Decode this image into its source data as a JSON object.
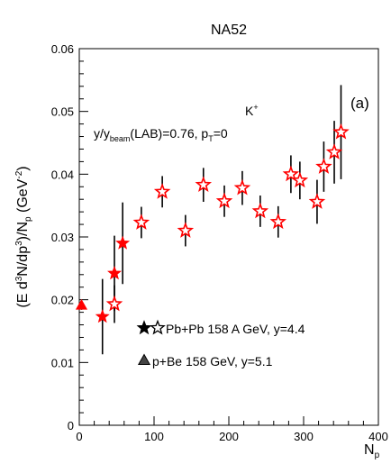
{
  "chart_data": {
    "type": "scatter",
    "title": "NA52",
    "xlabel": "N",
    "xlabel_sub": "p",
    "ylabel": {
      "lead": "(E d",
      "sup1": "3",
      "mid": "N/dp",
      "sup2": "3",
      "close": ")/N",
      "sub": "p",
      "unit_open": " (GeV",
      "sup3": "-2",
      "unit_close": ")"
    },
    "xlim": [
      0,
      400
    ],
    "ylim": [
      0,
      0.06
    ],
    "xticks": [
      0,
      100,
      200,
      300,
      400
    ],
    "yticks": [
      0,
      0.01,
      0.02,
      0.03,
      0.04,
      0.05,
      0.06
    ],
    "ytick_labels": [
      "0",
      "0.01",
      "0.02",
      "0.03",
      "0.04",
      "0.05",
      "0.06"
    ],
    "grid": false,
    "annotations": {
      "particle": "K",
      "particle_sup": "+",
      "panel": "(a)",
      "kin_a": "y/y",
      "kin_sub": "beam",
      "kin_b": "(LAB)=0.76, p",
      "kin_sub2": "T",
      "kin_c": "=0"
    },
    "legend": {
      "placement": "bottom-center",
      "entries": [
        {
          "marker": "stars-filled-open",
          "label": "Pb+Pb 158 A GeV, y=4.4"
        },
        {
          "marker": "triangle-filled",
          "label": "p+Be 158 GeV, y=5.1"
        }
      ]
    },
    "series": [
      {
        "marker": "filled-star",
        "color": "#ff0000",
        "points": [
          {
            "x": 31,
            "y": 0.0173,
            "err": 0.006
          },
          {
            "x": 47,
            "y": 0.0242,
            "err": 0.006
          },
          {
            "x": 58,
            "y": 0.029,
            "err": 0.0065
          }
        ]
      },
      {
        "marker": "open-star",
        "color": "#ff0000",
        "points": [
          {
            "x": 47,
            "y": 0.0193,
            "err": 0.003
          },
          {
            "x": 83,
            "y": 0.0323,
            "err": 0.0025
          },
          {
            "x": 111,
            "y": 0.0372,
            "err": 0.0025
          },
          {
            "x": 142,
            "y": 0.031,
            "err": 0.0025
          },
          {
            "x": 166,
            "y": 0.0383,
            "err": 0.0027
          },
          {
            "x": 194,
            "y": 0.0357,
            "err": 0.0025
          },
          {
            "x": 218,
            "y": 0.0378,
            "err": 0.0027
          },
          {
            "x": 242,
            "y": 0.0341,
            "err": 0.0025
          },
          {
            "x": 266,
            "y": 0.0324,
            "err": 0.0025
          },
          {
            "x": 283,
            "y": 0.04,
            "err": 0.003
          },
          {
            "x": 295,
            "y": 0.039,
            "err": 0.003
          },
          {
            "x": 318,
            "y": 0.0356,
            "err": 0.0035
          },
          {
            "x": 327,
            "y": 0.0412,
            "err": 0.004
          },
          {
            "x": 341,
            "y": 0.0435,
            "err": 0.005
          },
          {
            "x": 350,
            "y": 0.0467,
            "err": 0.0075
          }
        ]
      },
      {
        "marker": "filled-triangle",
        "color": "#ff0000",
        "points": [
          {
            "x": 3,
            "y": 0.0191,
            "err": 0.0007
          }
        ]
      }
    ]
  }
}
